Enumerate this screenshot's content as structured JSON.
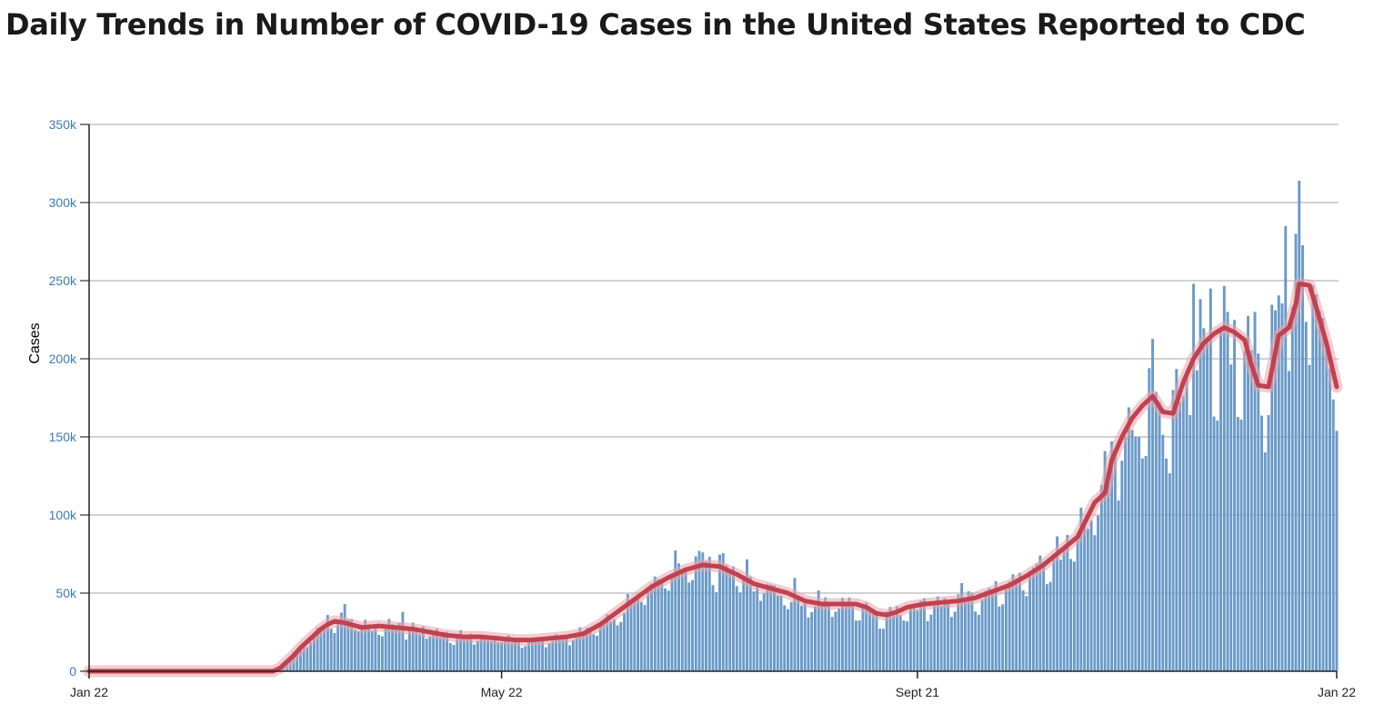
{
  "page": {
    "title": "Daily Trends in Number of COVID-19 Cases in the United States Reported to CDC"
  },
  "colors": {
    "bar": "#6a9ac8",
    "bar_stroke": "#4a7fb5",
    "trend": "#c1414f",
    "trend_glow": "#e8a4ac",
    "grid": "#b8b8b8",
    "ytick": "#3b7ab8"
  },
  "chart_data": {
    "type": "bar",
    "title": "Daily Trends in Number of COVID-19 Cases in the United States Reported to CDC",
    "ylabel": "Cases",
    "xlabel": "",
    "ylim": [
      0,
      350000
    ],
    "y_ticks": [
      0,
      50000,
      100000,
      150000,
      200000,
      250000,
      300000,
      350000
    ],
    "y_tick_labels": [
      "0",
      "50k",
      "100k",
      "150k",
      "200k",
      "250k",
      "300k",
      "350k"
    ],
    "x_tick_labels": [
      "Jan 22",
      "May 22",
      "Sept 21",
      "Jan 22"
    ],
    "x_tick_days": [
      0,
      121,
      243,
      366
    ],
    "grid": "horizontal",
    "x_range_days": [
      0,
      366
    ],
    "series": [
      {
        "type": "bar",
        "shape_points": [
          [
            0,
            0
          ],
          [
            54,
            0
          ],
          [
            56,
            2000
          ],
          [
            58,
            6000
          ],
          [
            60,
            10000
          ],
          [
            62,
            15000
          ],
          [
            64,
            19000
          ],
          [
            66,
            23000
          ],
          [
            68,
            27000
          ],
          [
            70,
            30000
          ],
          [
            72,
            32000
          ],
          [
            75,
            31000
          ],
          [
            80,
            28000
          ],
          [
            85,
            29000
          ],
          [
            90,
            28000
          ],
          [
            95,
            27000
          ],
          [
            100,
            25000
          ],
          [
            105,
            23000
          ],
          [
            110,
            22000
          ],
          [
            115,
            22000
          ],
          [
            120,
            21000
          ],
          [
            125,
            20000
          ],
          [
            130,
            20000
          ],
          [
            135,
            21000
          ],
          [
            140,
            22000
          ],
          [
            145,
            24000
          ],
          [
            150,
            30000
          ],
          [
            155,
            38000
          ],
          [
            160,
            46000
          ],
          [
            165,
            54000
          ],
          [
            170,
            60000
          ],
          [
            175,
            65000
          ],
          [
            180,
            68000
          ],
          [
            185,
            67000
          ],
          [
            190,
            62000
          ],
          [
            195,
            56000
          ],
          [
            200,
            53000
          ],
          [
            205,
            50000
          ],
          [
            210,
            45000
          ],
          [
            215,
            43000
          ],
          [
            220,
            43000
          ],
          [
            225,
            43000
          ],
          [
            228,
            41000
          ],
          [
            231,
            37000
          ],
          [
            234,
            36000
          ],
          [
            237,
            38000
          ],
          [
            240,
            41000
          ],
          [
            245,
            43000
          ],
          [
            250,
            44000
          ],
          [
            255,
            45000
          ],
          [
            260,
            47000
          ],
          [
            265,
            51000
          ],
          [
            270,
            55000
          ],
          [
            275,
            61000
          ],
          [
            280,
            68000
          ],
          [
            285,
            77000
          ],
          [
            290,
            86000
          ],
          [
            295,
            108000
          ],
          [
            298,
            114000
          ],
          [
            300,
            135000
          ],
          [
            303,
            150000
          ],
          [
            306,
            162000
          ],
          [
            309,
            170000
          ],
          [
            312,
            176000
          ],
          [
            315,
            166000
          ],
          [
            318,
            165000
          ],
          [
            321,
            185000
          ],
          [
            324,
            200000
          ],
          [
            327,
            210000
          ],
          [
            330,
            216000
          ],
          [
            333,
            220000
          ],
          [
            336,
            217000
          ],
          [
            339,
            212000
          ],
          [
            341,
            196000
          ],
          [
            343,
            183000
          ],
          [
            346,
            182000
          ],
          [
            349,
            215000
          ],
          [
            352,
            220000
          ],
          [
            354,
            235000
          ],
          [
            355,
            248000
          ],
          [
            358,
            247000
          ],
          [
            360,
            233000
          ],
          [
            363,
            210000
          ],
          [
            366,
            182000
          ]
        ],
        "spikes": [
          [
            70,
            36000
          ],
          [
            75,
            43000
          ],
          [
            92,
            38000
          ],
          [
            308,
            150000
          ],
          [
            318,
            180000
          ],
          [
            324,
            248000
          ],
          [
            329,
            245000
          ],
          [
            334,
            230000
          ],
          [
            342,
            230000
          ],
          [
            348,
            231000
          ],
          [
            351,
            285000
          ],
          [
            354,
            280000
          ],
          [
            355,
            314000
          ],
          [
            359,
            247000
          ]
        ]
      },
      {
        "type": "line",
        "shape_points": [
          [
            0,
            0
          ],
          [
            54,
            0
          ],
          [
            56,
            2000
          ],
          [
            58,
            6000
          ],
          [
            60,
            10000
          ],
          [
            62,
            15000
          ],
          [
            64,
            19000
          ],
          [
            66,
            23000
          ],
          [
            68,
            27000
          ],
          [
            70,
            30000
          ],
          [
            72,
            32000
          ],
          [
            75,
            31000
          ],
          [
            80,
            28000
          ],
          [
            85,
            29000
          ],
          [
            90,
            28000
          ],
          [
            95,
            27000
          ],
          [
            100,
            25000
          ],
          [
            105,
            23000
          ],
          [
            110,
            22000
          ],
          [
            115,
            22000
          ],
          [
            120,
            21000
          ],
          [
            125,
            20000
          ],
          [
            130,
            20000
          ],
          [
            135,
            21000
          ],
          [
            140,
            22000
          ],
          [
            145,
            24000
          ],
          [
            150,
            30000
          ],
          [
            155,
            38000
          ],
          [
            160,
            46000
          ],
          [
            165,
            54000
          ],
          [
            170,
            60000
          ],
          [
            175,
            65000
          ],
          [
            180,
            68000
          ],
          [
            185,
            67000
          ],
          [
            190,
            62000
          ],
          [
            195,
            56000
          ],
          [
            200,
            53000
          ],
          [
            205,
            50000
          ],
          [
            210,
            45000
          ],
          [
            215,
            43000
          ],
          [
            220,
            43000
          ],
          [
            225,
            43000
          ],
          [
            228,
            41000
          ],
          [
            231,
            37000
          ],
          [
            234,
            36000
          ],
          [
            237,
            38000
          ],
          [
            240,
            41000
          ],
          [
            245,
            43000
          ],
          [
            250,
            44000
          ],
          [
            255,
            45000
          ],
          [
            260,
            47000
          ],
          [
            265,
            51000
          ],
          [
            270,
            55000
          ],
          [
            275,
            61000
          ],
          [
            280,
            68000
          ],
          [
            285,
            77000
          ],
          [
            290,
            86000
          ],
          [
            295,
            108000
          ],
          [
            298,
            114000
          ],
          [
            300,
            135000
          ],
          [
            303,
            150000
          ],
          [
            306,
            162000
          ],
          [
            309,
            170000
          ],
          [
            312,
            176000
          ],
          [
            315,
            166000
          ],
          [
            318,
            165000
          ],
          [
            321,
            185000
          ],
          [
            324,
            200000
          ],
          [
            327,
            210000
          ],
          [
            330,
            216000
          ],
          [
            333,
            220000
          ],
          [
            336,
            217000
          ],
          [
            339,
            212000
          ],
          [
            341,
            196000
          ],
          [
            343,
            183000
          ],
          [
            346,
            182000
          ],
          [
            349,
            215000
          ],
          [
            352,
            220000
          ],
          [
            354,
            235000
          ],
          [
            355,
            248000
          ],
          [
            358,
            247000
          ],
          [
            360,
            233000
          ],
          [
            363,
            210000
          ],
          [
            366,
            182000
          ]
        ]
      }
    ]
  }
}
